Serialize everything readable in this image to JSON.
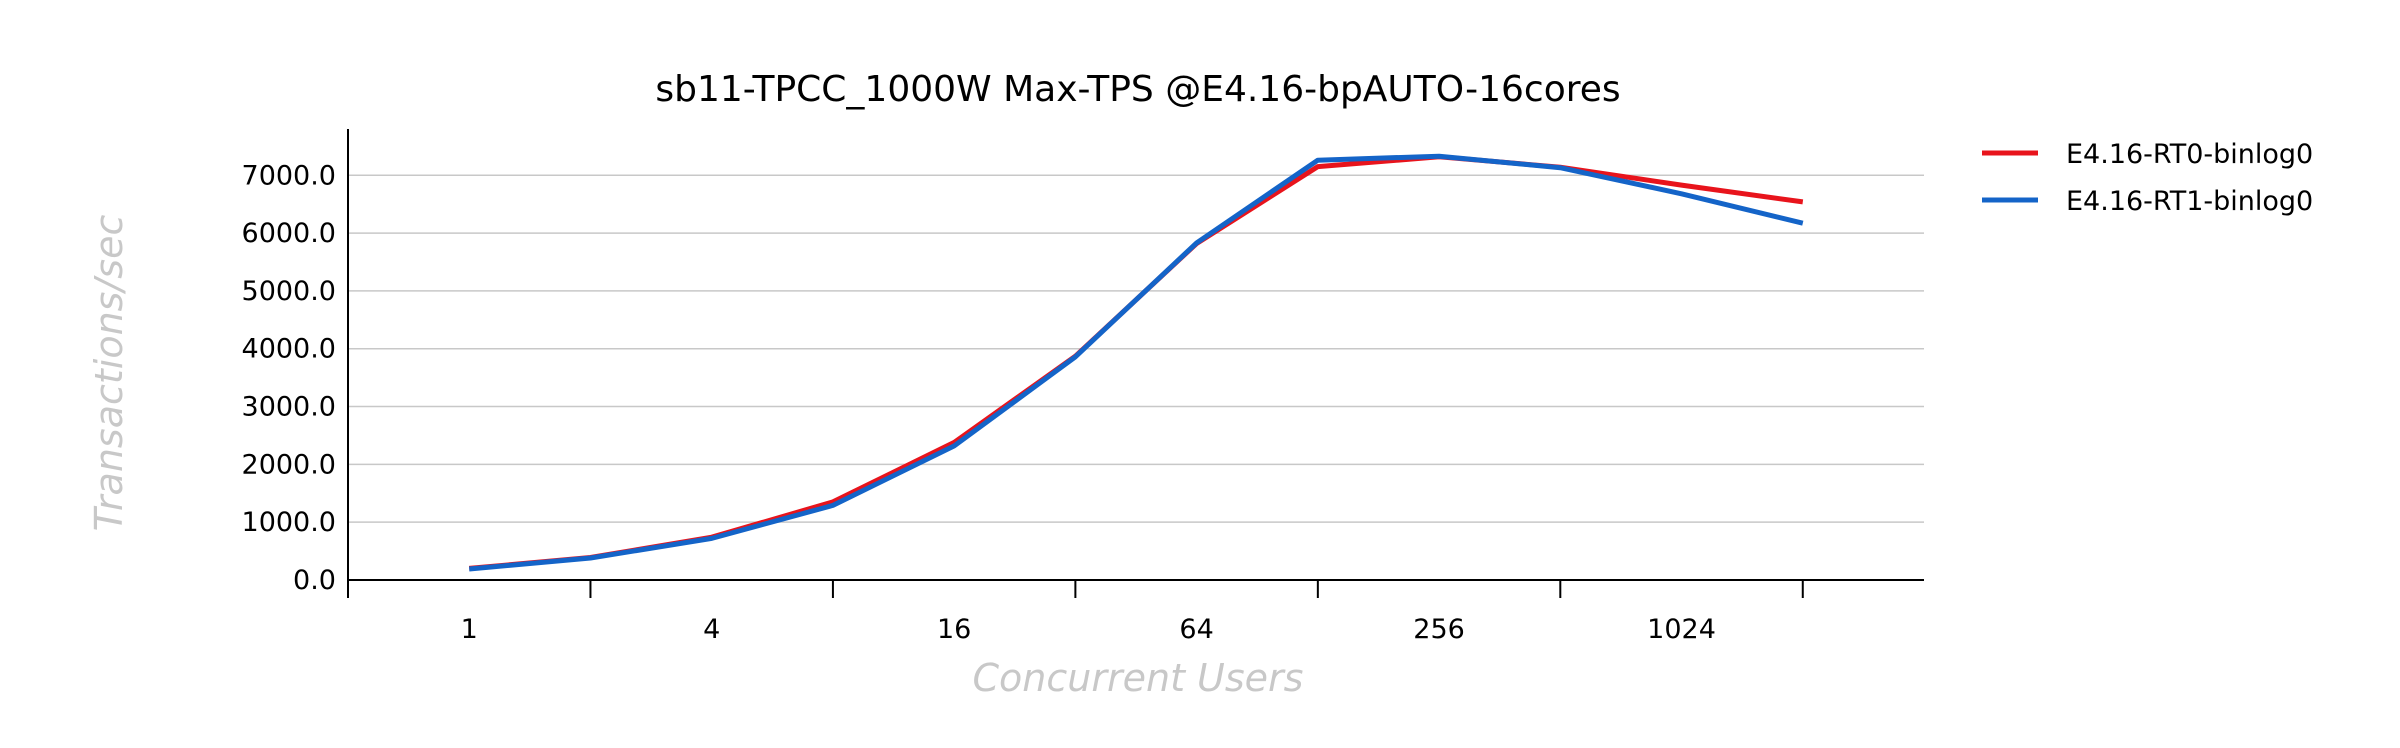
{
  "chart_data": {
    "type": "line",
    "title": "sb11-TPCC_1000W Max-TPS @E4.16-bpAUTO-16cores",
    "xlabel": "Concurrent Users",
    "ylabel": "Transactions/sec",
    "x": [
      1,
      2,
      4,
      8,
      16,
      32,
      64,
      128,
      256,
      512,
      1024,
      2048
    ],
    "x_tick_labels": [
      "1",
      "4",
      "16",
      "64",
      "256",
      "1024"
    ],
    "x_scale": "log2",
    "ylim": [
      0,
      7800
    ],
    "y_ticks": [
      "0.0",
      "1000.0",
      "2000.0",
      "3000.0",
      "4000.0",
      "5000.0",
      "6000.0",
      "7000.0"
    ],
    "grid": "horizontal",
    "legend_position": "top-right-outside",
    "series": [
      {
        "name": "E4.16-RT0-binlog0",
        "color": "#e8141c",
        "values": [
          200,
          390,
          740,
          1350,
          2380,
          3870,
          5820,
          7150,
          7320,
          7140,
          6830,
          6540
        ]
      },
      {
        "name": "E4.16-RT1-binlog0",
        "color": "#1464c8",
        "values": [
          190,
          380,
          720,
          1290,
          2320,
          3860,
          5830,
          7260,
          7330,
          7130,
          6680,
          6170
        ]
      }
    ]
  }
}
